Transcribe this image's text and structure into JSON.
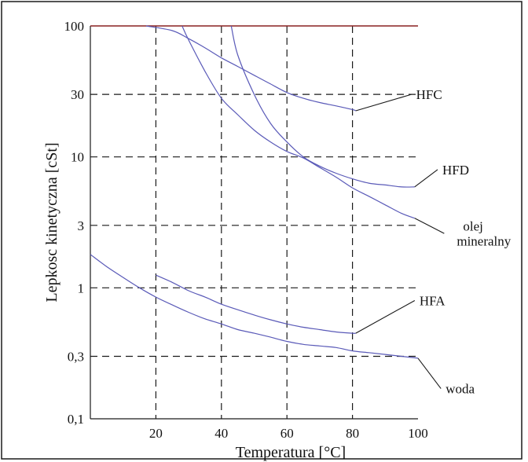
{
  "chart_data": {
    "type": "line",
    "title": "",
    "xlabel": "Temperatura  [°C]",
    "ylabel": "Lepkosc kinetyczna  [cSt]",
    "xlim": [
      0,
      100
    ],
    "ylim": [
      0.1,
      100
    ],
    "yscale": "log",
    "grid": true,
    "x_ticks": [
      {
        "value": 20,
        "label": "20"
      },
      {
        "value": 40,
        "label": "40"
      },
      {
        "value": 60,
        "label": "60"
      },
      {
        "value": 80,
        "label": "80"
      },
      {
        "value": 100,
        "label": "100"
      }
    ],
    "y_ticks": [
      {
        "value": 0.1,
        "label": "0,1"
      },
      {
        "value": 0.3,
        "label": "0,3"
      },
      {
        "value": 1,
        "label": "1"
      },
      {
        "value": 3,
        "label": "3"
      },
      {
        "value": 10,
        "label": "10"
      },
      {
        "value": 30,
        "label": "30"
      },
      {
        "value": 100,
        "label": "100"
      }
    ],
    "series": [
      {
        "name": "HFC",
        "label_lines": [
          "HFC"
        ],
        "x": [
          17,
          25,
          30,
          35,
          40,
          45,
          50,
          55,
          60,
          65,
          70,
          75,
          80,
          81
        ],
        "y": [
          100,
          92,
          80,
          68,
          57,
          49,
          42,
          36,
          31,
          28,
          26,
          24.5,
          23,
          22.5
        ],
        "leader": {
          "from": [
            81,
            22.5
          ],
          "to": [
            98,
            30
          ]
        }
      },
      {
        "name": "HFD",
        "label_lines": [
          "HFD"
        ],
        "x": [
          43,
          45,
          50,
          55,
          60,
          65,
          70,
          75,
          80,
          85,
          90,
          95,
          99
        ],
        "y": [
          100,
          60,
          30,
          18,
          13,
          10,
          8.5,
          7.5,
          6.8,
          6.3,
          6.1,
          5.9,
          5.9
        ],
        "leader": {
          "from": [
            99,
            5.9
          ],
          "to": [
            106,
            8
          ]
        }
      },
      {
        "name": "olej mineralny",
        "label_lines": [
          "olej",
          "mineralny"
        ],
        "x": [
          28,
          30,
          35,
          40,
          45,
          50,
          55,
          60,
          65,
          70,
          75,
          80,
          85,
          90,
          95,
          99
        ],
        "y": [
          100,
          78,
          45,
          28,
          21,
          16,
          13,
          11,
          9.8,
          8.3,
          7.0,
          5.8,
          5.0,
          4.3,
          3.7,
          3.4
        ],
        "leader": {
          "from": [
            99,
            3.4
          ],
          "to": [
            108,
            2.6
          ]
        }
      },
      {
        "name": "HFA",
        "label_lines": [
          "HFA"
        ],
        "x": [
          20,
          25,
          30,
          35,
          40,
          45,
          50,
          55,
          60,
          65,
          70,
          75,
          80,
          81
        ],
        "y": [
          1.25,
          1.1,
          0.95,
          0.85,
          0.75,
          0.68,
          0.62,
          0.57,
          0.53,
          0.5,
          0.48,
          0.46,
          0.45,
          0.45
        ],
        "leader": {
          "from": [
            81,
            0.45
          ],
          "to": [
            99,
            0.8
          ]
        }
      },
      {
        "name": "woda",
        "label_lines": [
          "woda"
        ],
        "x": [
          0,
          5,
          10,
          15,
          20,
          25,
          30,
          35,
          40,
          45,
          50,
          55,
          60,
          65,
          70,
          75,
          80,
          85,
          90,
          95,
          100
        ],
        "y": [
          1.8,
          1.45,
          1.2,
          1.0,
          0.85,
          0.74,
          0.65,
          0.58,
          0.53,
          0.48,
          0.45,
          0.42,
          0.39,
          0.37,
          0.36,
          0.35,
          0.33,
          0.32,
          0.31,
          0.3,
          0.29
        ],
        "leader": {
          "from": [
            100,
            0.29
          ],
          "to": [
            107,
            0.17
          ]
        }
      }
    ]
  }
}
